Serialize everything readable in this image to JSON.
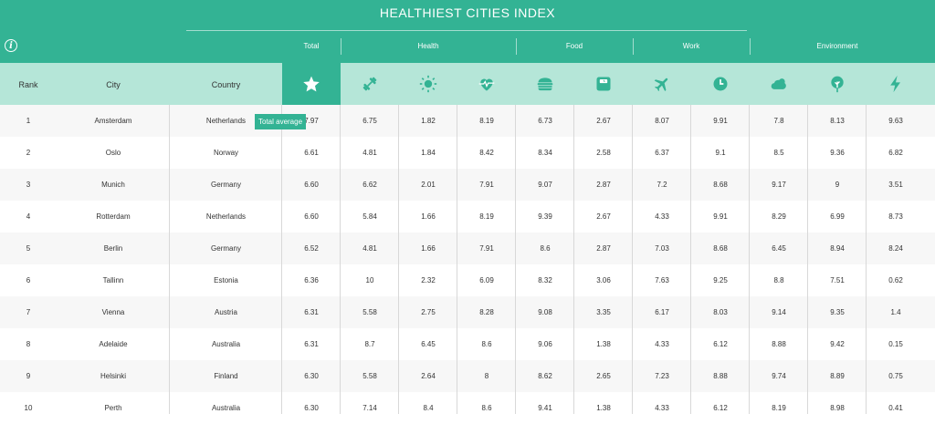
{
  "title": "HEALTHIEST CITIES INDEX",
  "info_icon": "info-icon",
  "categories": [
    {
      "label": "Total"
    },
    {
      "label": "Health"
    },
    {
      "label": "Food"
    },
    {
      "label": "Work"
    },
    {
      "label": "Environment"
    }
  ],
  "columns": {
    "rank": "Rank",
    "city": "City",
    "country": "Country"
  },
  "metric_icons": [
    "star-icon",
    "dumbbell-icon",
    "sun-icon",
    "heartbeat-icon",
    "burger-icon",
    "scale-icon",
    "plane-icon",
    "clock-icon",
    "cloud-icon",
    "tree-icon",
    "lightning-icon"
  ],
  "tooltip": "Total average",
  "colors": {
    "accent": "#33b394",
    "subheader": "#b5e6d8"
  },
  "rows": [
    {
      "rank": "1",
      "city": "Amsterdam",
      "country": "Netherlands",
      "values": [
        "7.97",
        "6.75",
        "1.82",
        "8.19",
        "6.73",
        "2.67",
        "8.07",
        "9.91",
        "7.8",
        "8.13",
        "9.63"
      ]
    },
    {
      "rank": "2",
      "city": "Oslo",
      "country": "Norway",
      "values": [
        "6.61",
        "4.81",
        "1.84",
        "8.42",
        "8.34",
        "2.58",
        "6.37",
        "9.1",
        "8.5",
        "9.36",
        "6.82"
      ]
    },
    {
      "rank": "3",
      "city": "Munich",
      "country": "Germany",
      "values": [
        "6.60",
        "6.62",
        "2.01",
        "7.91",
        "9.07",
        "2.87",
        "7.2",
        "8.68",
        "9.17",
        "9",
        "3.51"
      ]
    },
    {
      "rank": "4",
      "city": "Rotterdam",
      "country": "Netherlands",
      "values": [
        "6.60",
        "5.84",
        "1.66",
        "8.19",
        "9.39",
        "2.67",
        "4.33",
        "9.91",
        "8.29",
        "6.99",
        "8.73"
      ]
    },
    {
      "rank": "5",
      "city": "Berlin",
      "country": "Germany",
      "values": [
        "6.52",
        "4.81",
        "1.66",
        "7.91",
        "8.6",
        "2.87",
        "7.03",
        "8.68",
        "6.45",
        "8.94",
        "8.24"
      ]
    },
    {
      "rank": "6",
      "city": "Tallinn",
      "country": "Estonia",
      "values": [
        "6.36",
        "10",
        "2.32",
        "6.09",
        "8.32",
        "3.06",
        "7.63",
        "9.25",
        "8.8",
        "7.51",
        "0.62"
      ]
    },
    {
      "rank": "7",
      "city": "Vienna",
      "country": "Austria",
      "values": [
        "6.31",
        "5.58",
        "2.75",
        "8.28",
        "9.08",
        "3.35",
        "6.17",
        "8.03",
        "9.14",
        "9.35",
        "1.4"
      ]
    },
    {
      "rank": "8",
      "city": "Adelaide",
      "country": "Australia",
      "values": [
        "6.31",
        "8.7",
        "6.45",
        "8.6",
        "9.06",
        "1.38",
        "4.33",
        "6.12",
        "8.88",
        "9.42",
        "0.15"
      ]
    },
    {
      "rank": "9",
      "city": "Helsinki",
      "country": "Finland",
      "values": [
        "6.30",
        "5.58",
        "2.64",
        "8",
        "8.62",
        "2.65",
        "7.23",
        "8.88",
        "9.74",
        "8.89",
        "0.75"
      ]
    },
    {
      "rank": "10",
      "city": "Perth",
      "country": "Australia",
      "values": [
        "6.30",
        "7.14",
        "8.4",
        "8.6",
        "9.41",
        "1.38",
        "4.33",
        "6.12",
        "8.19",
        "8.98",
        "0.41"
      ]
    }
  ]
}
